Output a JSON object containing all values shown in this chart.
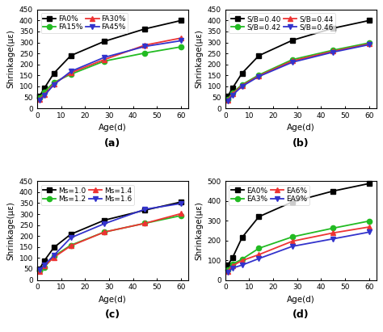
{
  "age": [
    1,
    3,
    7,
    14,
    28,
    45,
    60
  ],
  "subplot_a": {
    "title": "(a)",
    "series": [
      {
        "label": "FA0%",
        "color": "#000000",
        "marker": "s",
        "values": [
          55,
          92,
          160,
          240,
          305,
          362,
          400
        ]
      },
      {
        "label": "FA15%",
        "color": "#22bb22",
        "marker": "o",
        "values": [
          48,
          75,
          118,
          155,
          215,
          252,
          280
        ]
      },
      {
        "label": "FA30%",
        "color": "#ee3333",
        "marker": "^",
        "values": [
          42,
          62,
          112,
          162,
          222,
          288,
          320
        ]
      },
      {
        "label": "FA45%",
        "color": "#3333cc",
        "marker": "v",
        "values": [
          38,
          58,
          108,
          168,
          232,
          282,
          308
        ]
      }
    ],
    "ylim": [
      0,
      450
    ],
    "yticks": [
      0,
      50,
      100,
      150,
      200,
      250,
      300,
      350,
      400,
      450
    ]
  },
  "subplot_b": {
    "title": "(b)",
    "series": [
      {
        "label": "S/B=0.40",
        "color": "#000000",
        "marker": "s",
        "values": [
          55,
          92,
          160,
          240,
          310,
          365,
          400
        ]
      },
      {
        "label": "S/B=0.42",
        "color": "#22bb22",
        "marker": "o",
        "values": [
          42,
          70,
          108,
          152,
          222,
          265,
          298
        ]
      },
      {
        "label": "S/B=0.44",
        "color": "#ee3333",
        "marker": "^",
        "values": [
          38,
          65,
          104,
          148,
          216,
          260,
          293
        ]
      },
      {
        "label": "S/B=0.46",
        "color": "#3333cc",
        "marker": "v",
        "values": [
          34,
          60,
          100,
          145,
          210,
          256,
          290
        ]
      }
    ],
    "ylim": [
      0,
      450
    ],
    "yticks": [
      0,
      50,
      100,
      150,
      200,
      250,
      300,
      350,
      400,
      450
    ]
  },
  "subplot_c": {
    "title": "(c)",
    "series": [
      {
        "label": "Ms=1.0",
        "color": "#000000",
        "marker": "s",
        "values": [
          50,
          88,
          148,
          208,
          272,
          318,
          355
        ]
      },
      {
        "label": "Ms=1.2",
        "color": "#22bb22",
        "marker": "o",
        "values": [
          42,
          58,
          108,
          158,
          218,
          258,
          293
        ]
      },
      {
        "label": "Ms=1.4",
        "color": "#ee3333",
        "marker": "^",
        "values": [
          38,
          63,
          103,
          155,
          218,
          258,
          302
        ]
      },
      {
        "label": "Ms=1.6",
        "color": "#3333cc",
        "marker": "v",
        "values": [
          46,
          68,
          112,
          192,
          256,
          322,
          348
        ]
      }
    ],
    "ylim": [
      0,
      450
    ],
    "yticks": [
      0,
      50,
      100,
      150,
      200,
      250,
      300,
      350,
      400,
      450
    ]
  },
  "subplot_d": {
    "title": "(d)",
    "series": [
      {
        "label": "EA0%",
        "color": "#000000",
        "marker": "s",
        "values": [
          75,
          112,
          215,
          320,
          395,
          450,
          488
        ]
      },
      {
        "label": "EA3%",
        "color": "#22bb22",
        "marker": "o",
        "values": [
          52,
          80,
          105,
          160,
          218,
          262,
          298
        ]
      },
      {
        "label": "EA6%",
        "color": "#ee3333",
        "marker": "^",
        "values": [
          45,
          72,
          98,
          128,
          196,
          238,
          268
        ]
      },
      {
        "label": "EA9%",
        "color": "#3333cc",
        "marker": "v",
        "values": [
          38,
          60,
          75,
          108,
          170,
          208,
          242
        ]
      }
    ],
    "ylim": [
      0,
      500
    ],
    "yticks": [
      0,
      100,
      200,
      300,
      400,
      500
    ]
  },
  "xlabel": "Age(d)",
  "ylabel": "Shrinkage(με)",
  "xticks": [
    0,
    10,
    20,
    30,
    40,
    50,
    60
  ],
  "xlim": [
    0,
    63
  ],
  "linewidth": 1.3,
  "markersize": 4.5,
  "label_fontsize": 7.5,
  "tick_fontsize": 6.5,
  "legend_fontsize": 6.5,
  "subtitle_fontsize": 9
}
